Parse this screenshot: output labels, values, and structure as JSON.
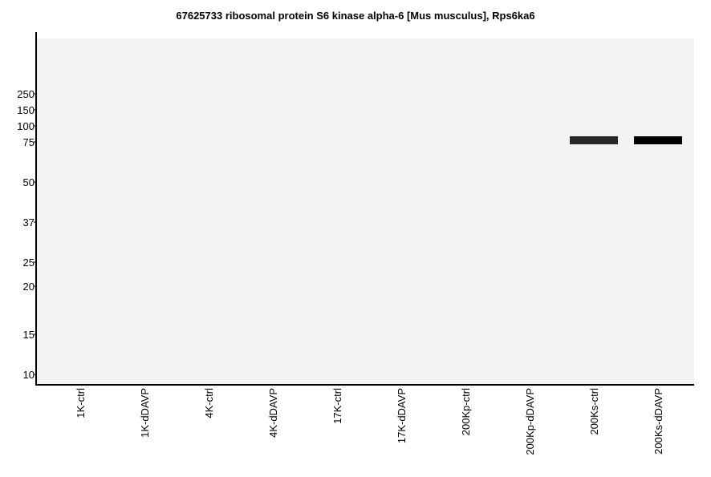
{
  "chart_data": {
    "type": "western-blot",
    "title": "67625733 ribosomal protein S6 kinase alpha-6 [Mus musculus], Rps6ka6",
    "y_ticks": [
      250,
      150,
      100,
      75,
      50,
      37,
      25,
      20,
      15,
      10
    ],
    "lanes": [
      "1K-ctrl",
      "1K-dDAVP",
      "4K-ctrl",
      "4K-dDAVP",
      "17K-ctrl",
      "17K-dDAVP",
      "200Kp-ctrl",
      "200Kp-dDAVP",
      "200Ks-ctrl",
      "200Ks-dDAVP"
    ],
    "bands": [
      {
        "lane": "200Ks-ctrl",
        "mw": 75,
        "intensity": 0.82
      },
      {
        "lane": "200Ks-dDAVP",
        "mw": 75,
        "intensity": 1.0
      }
    ],
    "background": "#f2f2f2"
  }
}
